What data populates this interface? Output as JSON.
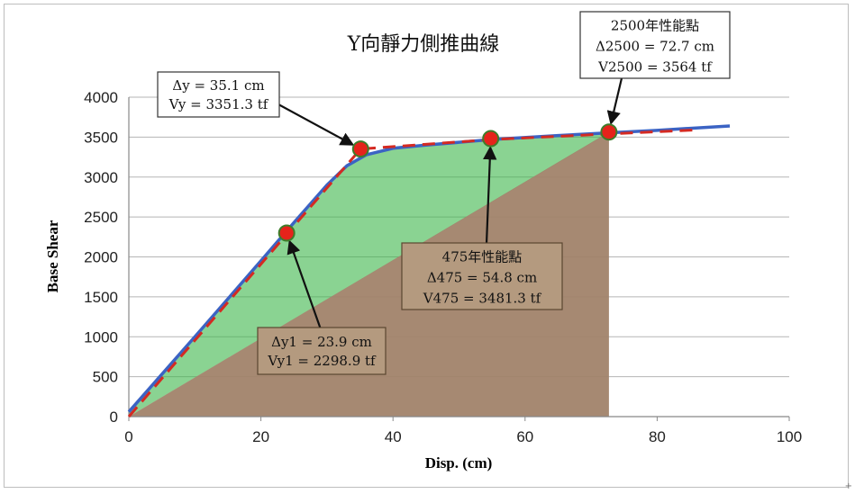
{
  "chart_data": {
    "type": "line",
    "title": "Y向靜力側推曲線",
    "xlabel": "Disp. (cm)",
    "ylabel": "Base Shear",
    "xlim": [
      0,
      100
    ],
    "ylim": [
      0,
      4000
    ],
    "xticks": [
      "0",
      "20",
      "40",
      "60",
      "80",
      "100"
    ],
    "yticks": [
      "0",
      "500",
      "1000",
      "1500",
      "2000",
      "2500",
      "3000",
      "3500",
      "4000"
    ],
    "grid": "horizontal",
    "series": [
      {
        "color": "#3b63c4",
        "style": "solid",
        "x": [
          0,
          10,
          20,
          25,
          30,
          33,
          36,
          40,
          45,
          55,
          65,
          73,
          80,
          91
        ],
        "y": [
          60,
          1000,
          1950,
          2430,
          2900,
          3140,
          3280,
          3360,
          3400,
          3470,
          3520,
          3555,
          3585,
          3640
        ]
      },
      {
        "color": "#d42a22",
        "style": "dashed",
        "x": [
          0,
          35.1,
          55,
          72.7,
          86
        ],
        "y": [
          0,
          3351.3,
          3470,
          3540,
          3590
        ]
      }
    ],
    "regions": [
      {
        "color": "#3cb54a",
        "opacity": 0.6,
        "x": [
          0,
          10,
          20,
          25,
          30,
          33,
          36,
          40,
          45,
          55,
          65,
          72.7
        ],
        "y": [
          60,
          1000,
          1950,
          2430,
          2900,
          3140,
          3280,
          3360,
          3400,
          3470,
          3520,
          3554
        ]
      },
      {
        "color": "#a1836a",
        "opacity": 0.95,
        "x": [
          0,
          72.7,
          72.7
        ],
        "y": [
          0,
          3564,
          0
        ]
      }
    ],
    "points": [
      {
        "x": 23.9,
        "y": 2298.9
      },
      {
        "x": 35.1,
        "y": 3351.3
      },
      {
        "x": 54.8,
        "y": 3481.3
      },
      {
        "x": 72.7,
        "y": 3564
      }
    ],
    "annotations": [
      {
        "lines": [
          "Δy = 35.1 cm",
          "Vy = 3351.3 tf"
        ],
        "target": 1,
        "style": "plain"
      },
      {
        "lines": [
          "2500年性能點",
          "Δ2500 = 72.7 cm",
          "V2500 = 3564 tf"
        ],
        "target": 3,
        "style": "plain"
      },
      {
        "lines": [
          "475年性能點",
          "Δ475 = 54.8 cm",
          "V475 = 3481.3 tf"
        ],
        "target": 2,
        "style": "filled"
      },
      {
        "lines": [
          "Δy1 = 23.9 cm",
          "Vy1 = 2298.9 tf"
        ],
        "target": 0,
        "style": "filled"
      }
    ]
  }
}
